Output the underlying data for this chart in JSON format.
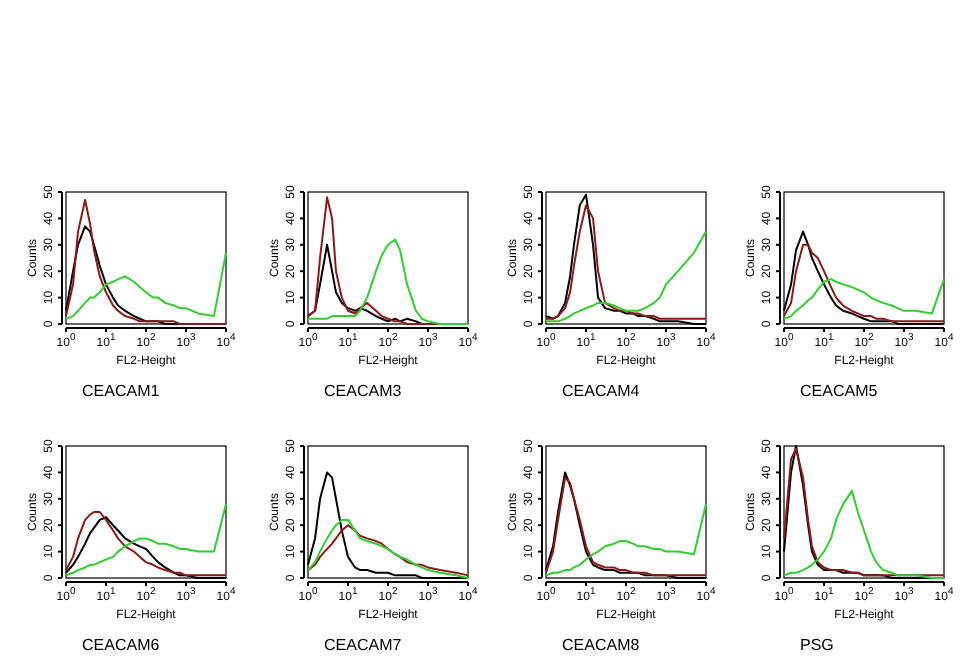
{
  "chart_data": [
    {
      "type": "line",
      "title": "CEACAM1",
      "xlabel": "FL2-Height",
      "ylabel": "Counts",
      "log": "x",
      "xlim": [
        1,
        10000
      ],
      "ylim": [
        0,
        50
      ],
      "grid": false,
      "marker": "none",
      "line_style": "solid",
      "xticks": [
        {
          "value": 1,
          "label": "10$^{0}$"
        },
        {
          "value": 10,
          "label": "10$^{1}$"
        },
        {
          "value": 100,
          "label": "10$^{2}$"
        },
        {
          "value": 1000,
          "label": "10$^{3}$"
        },
        {
          "value": 10000,
          "label": "10$^{4}$"
        }
      ],
      "yticks": [
        0,
        10,
        20,
        30,
        40,
        50
      ],
      "x": [
        1,
        1.5,
        2,
        3,
        4,
        5,
        7,
        10,
        15,
        20,
        30,
        50,
        70,
        100,
        150,
        200,
        300,
        500,
        700,
        1000,
        2000,
        5000,
        10000
      ],
      "series": [
        {
          "color": "#000000",
          "values": [
            5,
            20,
            30,
            37,
            35,
            30,
            22,
            15,
            10,
            7,
            5,
            3,
            2,
            1,
            1,
            1,
            0,
            0,
            0,
            0,
            0,
            0,
            0
          ]
        },
        {
          "color": "#8b1a1a",
          "values": [
            3,
            15,
            35,
            47,
            38,
            28,
            18,
            12,
            7,
            5,
            3,
            2,
            1,
            1,
            1,
            1,
            1,
            1,
            0,
            0,
            0,
            0,
            0
          ]
        },
        {
          "color": "#33cc33",
          "values": [
            2,
            3,
            5,
            8,
            10,
            10,
            12,
            15,
            16,
            17,
            18,
            16,
            14,
            12,
            10,
            10,
            8,
            7,
            6,
            6,
            4,
            3,
            27
          ]
        }
      ]
    },
    {
      "type": "line",
      "title": "CEACAM3",
      "xlabel": "FL2-Height",
      "ylabel": "Counts",
      "log": "x",
      "xlim": [
        1,
        10000
      ],
      "ylim": [
        0,
        50
      ],
      "grid": false,
      "marker": "none",
      "line_style": "solid",
      "xticks": [
        {
          "value": 1,
          "label": "10$^{0}$"
        },
        {
          "value": 10,
          "label": "10$^{1}$"
        },
        {
          "value": 100,
          "label": "10$^{2}$"
        },
        {
          "value": 1000,
          "label": "10$^{3}$"
        },
        {
          "value": 10000,
          "label": "10$^{4}$"
        }
      ],
      "yticks": [
        0,
        10,
        20,
        30,
        40,
        50
      ],
      "x": [
        1,
        1.5,
        2,
        3,
        4,
        5,
        7,
        10,
        15,
        20,
        30,
        50,
        70,
        100,
        150,
        200,
        300,
        500,
        700,
        1000,
        2000,
        5000,
        10000
      ],
      "series": [
        {
          "color": "#000000",
          "values": [
            3,
            5,
            15,
            30,
            20,
            12,
            8,
            6,
            5,
            6,
            5,
            3,
            2,
            1,
            2,
            1,
            2,
            1,
            0,
            0,
            0,
            0,
            0
          ]
        },
        {
          "color": "#8b1a1a",
          "values": [
            3,
            5,
            25,
            48,
            40,
            20,
            10,
            5,
            4,
            6,
            8,
            5,
            3,
            2,
            1,
            1,
            0,
            0,
            0,
            0,
            0,
            0,
            0
          ]
        },
        {
          "color": "#33cc33",
          "values": [
            2,
            2,
            2,
            2,
            3,
            3,
            3,
            3,
            3,
            5,
            10,
            20,
            26,
            30,
            32,
            28,
            15,
            5,
            2,
            1,
            0,
            0,
            0
          ]
        }
      ]
    },
    {
      "type": "line",
      "title": "CEACAM4",
      "xlabel": "FL2-Height",
      "ylabel": "Counts",
      "log": "x",
      "xlim": [
        1,
        10000
      ],
      "ylim": [
        0,
        50
      ],
      "grid": false,
      "marker": "none",
      "line_style": "solid",
      "xticks": [
        {
          "value": 1,
          "label": "10$^{0}$"
        },
        {
          "value": 10,
          "label": "10$^{1}$"
        },
        {
          "value": 100,
          "label": "10$^{2}$"
        },
        {
          "value": 1000,
          "label": "10$^{3}$"
        },
        {
          "value": 10000,
          "label": "10$^{4}$"
        }
      ],
      "yticks": [
        0,
        10,
        20,
        30,
        40,
        50
      ],
      "x": [
        1,
        1.5,
        2,
        3,
        4,
        5,
        7,
        10,
        15,
        20,
        30,
        50,
        70,
        100,
        150,
        200,
        300,
        500,
        700,
        1000,
        2000,
        5000,
        10000
      ],
      "series": [
        {
          "color": "#000000",
          "values": [
            3,
            2,
            3,
            8,
            18,
            30,
            45,
            49,
            30,
            10,
            6,
            5,
            5,
            4,
            4,
            3,
            3,
            2,
            1,
            1,
            1,
            0,
            0
          ]
        },
        {
          "color": "#8b1a1a",
          "values": [
            2,
            2,
            3,
            6,
            12,
            22,
            35,
            45,
            40,
            20,
            8,
            6,
            5,
            5,
            4,
            4,
            3,
            3,
            2,
            2,
            2,
            2,
            2
          ]
        },
        {
          "color": "#33cc33",
          "values": [
            1,
            1,
            1,
            2,
            3,
            4,
            5,
            6,
            7,
            8,
            8,
            7,
            6,
            5,
            5,
            5,
            6,
            8,
            10,
            15,
            20,
            27,
            35
          ]
        }
      ]
    },
    {
      "type": "line",
      "title": "CEACAM5",
      "xlabel": "FL2-Height",
      "ylabel": "Counts",
      "log": "x",
      "xlim": [
        1,
        10000
      ],
      "ylim": [
        0,
        50
      ],
      "grid": false,
      "marker": "none",
      "line_style": "solid",
      "xticks": [
        {
          "value": 1,
          "label": "10$^{0}$"
        },
        {
          "value": 10,
          "label": "10$^{1}$"
        },
        {
          "value": 100,
          "label": "10$^{2}$"
        },
        {
          "value": 1000,
          "label": "10$^{3}$"
        },
        {
          "value": 10000,
          "label": "10$^{4}$"
        }
      ],
      "yticks": [
        0,
        10,
        20,
        30,
        40,
        50
      ],
      "x": [
        1,
        1.5,
        2,
        3,
        4,
        5,
        7,
        10,
        15,
        20,
        30,
        50,
        70,
        100,
        150,
        200,
        300,
        500,
        700,
        1000,
        2000,
        5000,
        10000
      ],
      "series": [
        {
          "color": "#000000",
          "values": [
            5,
            15,
            28,
            35,
            30,
            25,
            20,
            15,
            10,
            7,
            5,
            4,
            3,
            2,
            1,
            1,
            1,
            1,
            0,
            0,
            0,
            0,
            0
          ]
        },
        {
          "color": "#8b1a1a",
          "values": [
            3,
            8,
            20,
            30,
            30,
            27,
            25,
            20,
            14,
            10,
            7,
            5,
            4,
            3,
            3,
            2,
            2,
            1,
            1,
            1,
            1,
            1,
            1
          ]
        },
        {
          "color": "#33cc33",
          "values": [
            2,
            3,
            5,
            7,
            9,
            10,
            13,
            16,
            17,
            16,
            15,
            14,
            13,
            12,
            10,
            9,
            8,
            7,
            6,
            5,
            5,
            4,
            17
          ]
        }
      ]
    },
    {
      "type": "line",
      "title": "CEACAM6",
      "xlabel": "FL2-Height",
      "ylabel": "Counts",
      "log": "x",
      "xlim": [
        1,
        10000
      ],
      "ylim": [
        0,
        50
      ],
      "grid": false,
      "marker": "none",
      "line_style": "solid",
      "xticks": [
        {
          "value": 1,
          "label": "10$^{0}$"
        },
        {
          "value": 10,
          "label": "10$^{1}$"
        },
        {
          "value": 100,
          "label": "10$^{2}$"
        },
        {
          "value": 1000,
          "label": "10$^{3}$"
        },
        {
          "value": 10000,
          "label": "10$^{4}$"
        }
      ],
      "yticks": [
        0,
        10,
        20,
        30,
        40,
        50
      ],
      "x": [
        1,
        1.5,
        2,
        3,
        4,
        5,
        7,
        10,
        15,
        20,
        30,
        50,
        70,
        100,
        150,
        200,
        300,
        500,
        700,
        1000,
        2000,
        5000,
        10000
      ],
      "series": [
        {
          "color": "#000000",
          "values": [
            2,
            5,
            8,
            13,
            17,
            19,
            22,
            23,
            20,
            18,
            15,
            13,
            12,
            11,
            8,
            6,
            4,
            2,
            1,
            1,
            0,
            0,
            0
          ]
        },
        {
          "color": "#8b1a1a",
          "values": [
            3,
            8,
            15,
            22,
            24,
            25,
            25,
            22,
            18,
            15,
            12,
            10,
            8,
            6,
            5,
            4,
            3,
            2,
            2,
            1,
            1,
            1,
            1
          ]
        },
        {
          "color": "#33cc33",
          "values": [
            1,
            2,
            3,
            4,
            5,
            5,
            6,
            7,
            8,
            10,
            12,
            14,
            15,
            15,
            14,
            13,
            13,
            12,
            11,
            11,
            10,
            10,
            28
          ]
        }
      ]
    },
    {
      "type": "line",
      "title": "CEACAM7",
      "xlabel": "FL2-Height",
      "ylabel": "Counts",
      "log": "x",
      "xlim": [
        1,
        10000
      ],
      "ylim": [
        0,
        50
      ],
      "grid": false,
      "marker": "none",
      "line_style": "solid",
      "xticks": [
        {
          "value": 1,
          "label": "10$^{0}$"
        },
        {
          "value": 10,
          "label": "10$^{1}$"
        },
        {
          "value": 100,
          "label": "10$^{2}$"
        },
        {
          "value": 1000,
          "label": "10$^{3}$"
        },
        {
          "value": 10000,
          "label": "10$^{4}$"
        }
      ],
      "yticks": [
        0,
        10,
        20,
        30,
        40,
        50
      ],
      "x": [
        1,
        1.5,
        2,
        3,
        4,
        5,
        7,
        10,
        15,
        20,
        30,
        50,
        70,
        100,
        150,
        200,
        300,
        500,
        700,
        1000,
        2000,
        5000,
        10000
      ],
      "series": [
        {
          "color": "#000000",
          "values": [
            5,
            15,
            30,
            40,
            38,
            30,
            18,
            8,
            4,
            3,
            3,
            2,
            2,
            2,
            1,
            1,
            1,
            1,
            0,
            0,
            0,
            0,
            0
          ]
        },
        {
          "color": "#8b1a1a",
          "values": [
            3,
            5,
            8,
            11,
            13,
            15,
            18,
            20,
            18,
            16,
            15,
            14,
            13,
            11,
            9,
            8,
            6,
            5,
            5,
            4,
            3,
            2,
            1
          ]
        },
        {
          "color": "#33cc33",
          "values": [
            3,
            6,
            10,
            15,
            18,
            20,
            22,
            22,
            18,
            15,
            14,
            13,
            12,
            11,
            9,
            8,
            7,
            5,
            4,
            3,
            2,
            1,
            0
          ]
        }
      ]
    },
    {
      "type": "line",
      "title": "CEACAM8",
      "xlabel": "FL2-Height",
      "ylabel": "Counts",
      "log": "x",
      "xlim": [
        1,
        10000
      ],
      "ylim": [
        0,
        50
      ],
      "grid": false,
      "marker": "none",
      "line_style": "solid",
      "xticks": [
        {
          "value": 1,
          "label": "10$^{0}$"
        },
        {
          "value": 10,
          "label": "10$^{1}$"
        },
        {
          "value": 100,
          "label": "10$^{2}$"
        },
        {
          "value": 1000,
          "label": "10$^{3}$"
        },
        {
          "value": 10000,
          "label": "10$^{4}$"
        }
      ],
      "yticks": [
        0,
        10,
        20,
        30,
        40,
        50
      ],
      "x": [
        1,
        1.5,
        2,
        3,
        4,
        5,
        7,
        10,
        15,
        20,
        30,
        50,
        70,
        100,
        150,
        200,
        300,
        500,
        700,
        1000,
        2000,
        5000,
        10000
      ],
      "series": [
        {
          "color": "#000000",
          "values": [
            3,
            12,
            25,
            40,
            35,
            30,
            20,
            10,
            5,
            4,
            3,
            3,
            2,
            2,
            2,
            2,
            1,
            1,
            1,
            1,
            0,
            0,
            0
          ]
        },
        {
          "color": "#8b1a1a",
          "values": [
            2,
            10,
            22,
            38,
            36,
            30,
            22,
            12,
            6,
            5,
            4,
            4,
            3,
            3,
            2,
            2,
            2,
            1,
            1,
            1,
            1,
            1,
            1
          ]
        },
        {
          "color": "#33cc33",
          "values": [
            1,
            2,
            2,
            3,
            3,
            4,
            5,
            7,
            9,
            10,
            12,
            13,
            14,
            14,
            13,
            12,
            12,
            11,
            11,
            10,
            10,
            9,
            28
          ]
        }
      ]
    },
    {
      "type": "line",
      "title": "PSG",
      "xlabel": "FL2-Height",
      "ylabel": "Counts",
      "log": "x",
      "xlim": [
        1,
        10000
      ],
      "ylim": [
        0,
        50
      ],
      "grid": false,
      "marker": "none",
      "line_style": "solid",
      "xticks": [
        {
          "value": 1,
          "label": "10$^{0}$"
        },
        {
          "value": 10,
          "label": "10$^{1}$"
        },
        {
          "value": 100,
          "label": "10$^{2}$"
        },
        {
          "value": 1000,
          "label": "10$^{3}$"
        },
        {
          "value": 10000,
          "label": "10$^{4}$"
        }
      ],
      "yticks": [
        0,
        10,
        20,
        30,
        40,
        50
      ],
      "x": [
        1,
        1.5,
        2,
        3,
        4,
        5,
        7,
        10,
        15,
        20,
        30,
        50,
        70,
        100,
        150,
        200,
        300,
        500,
        700,
        1000,
        2000,
        5000,
        10000
      ],
      "series": [
        {
          "color": "#000000",
          "values": [
            10,
            40,
            50,
            35,
            20,
            10,
            5,
            3,
            3,
            3,
            2,
            2,
            2,
            1,
            1,
            1,
            1,
            0,
            0,
            0,
            0,
            0,
            0
          ]
        },
        {
          "color": "#8b1a1a",
          "values": [
            15,
            45,
            49,
            38,
            22,
            12,
            6,
            4,
            3,
            3,
            3,
            2,
            2,
            1,
            1,
            1,
            1,
            1,
            1,
            1,
            1,
            1,
            1
          ]
        },
        {
          "color": "#33cc33",
          "values": [
            1,
            2,
            2,
            3,
            4,
            5,
            7,
            10,
            15,
            22,
            28,
            33,
            25,
            18,
            10,
            6,
            3,
            2,
            1,
            1,
            1,
            0,
            0
          ]
        }
      ]
    }
  ]
}
